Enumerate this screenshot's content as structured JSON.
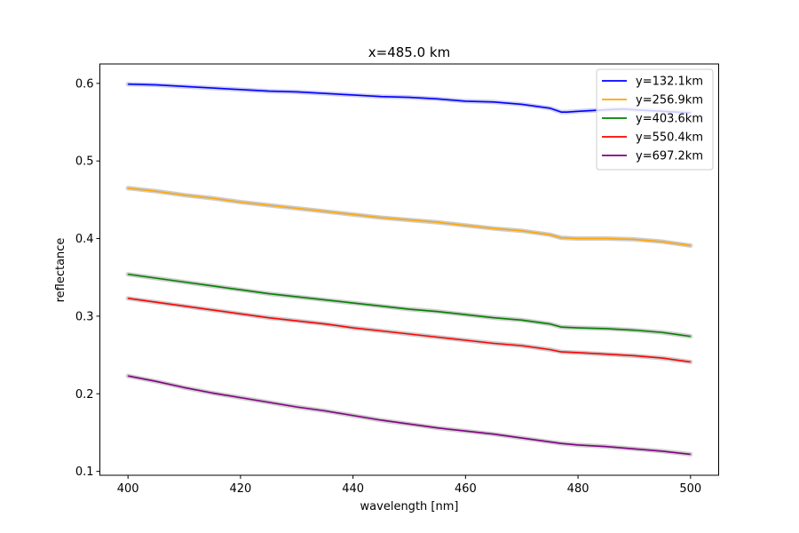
{
  "chart_data": {
    "type": "line",
    "title": "x=485.0 km",
    "xlabel": "wavelength [nm]",
    "ylabel": "reflectance",
    "xlim": [
      395,
      505
    ],
    "ylim": [
      0.095,
      0.625
    ],
    "xticks": [
      400,
      420,
      440,
      460,
      480,
      500
    ],
    "xtick_labels": [
      "400",
      "420",
      "440",
      "460",
      "480",
      "500"
    ],
    "yticks": [
      0.1,
      0.2,
      0.3,
      0.4,
      0.5,
      0.6
    ],
    "ytick_labels": [
      "0.1",
      "0.2",
      "0.3",
      "0.4",
      "0.5",
      "0.6"
    ],
    "grid": false,
    "legend_position": "top-right",
    "series": [
      {
        "name": "y=132.1km",
        "color": "#0000ff",
        "band_color": "#c8c8f0",
        "points": [
          [
            400,
            0.599
          ],
          [
            405,
            0.598
          ],
          [
            410,
            0.596
          ],
          [
            415,
            0.594
          ],
          [
            420,
            0.592
          ],
          [
            425,
            0.59
          ],
          [
            430,
            0.589
          ],
          [
            435,
            0.587
          ],
          [
            440,
            0.585
          ],
          [
            445,
            0.583
          ],
          [
            450,
            0.582
          ],
          [
            455,
            0.58
          ],
          [
            460,
            0.577
          ],
          [
            465,
            0.576
          ],
          [
            470,
            0.573
          ],
          [
            475,
            0.568
          ],
          [
            477,
            0.563
          ],
          [
            478,
            0.563
          ],
          [
            480,
            0.564
          ],
          [
            485,
            0.566
          ],
          [
            488,
            0.567
          ],
          [
            490,
            0.566
          ],
          [
            495,
            0.564
          ],
          [
            500,
            0.562
          ]
        ]
      },
      {
        "name": "y=256.9km",
        "color": "#ffa500",
        "band_color": "#c8c8c8",
        "points": [
          [
            400,
            0.465
          ],
          [
            405,
            0.461
          ],
          [
            410,
            0.456
          ],
          [
            415,
            0.452
          ],
          [
            420,
            0.447
          ],
          [
            425,
            0.443
          ],
          [
            430,
            0.439
          ],
          [
            435,
            0.435
          ],
          [
            440,
            0.431
          ],
          [
            445,
            0.427
          ],
          [
            450,
            0.424
          ],
          [
            455,
            0.421
          ],
          [
            460,
            0.417
          ],
          [
            465,
            0.413
          ],
          [
            470,
            0.41
          ],
          [
            475,
            0.405
          ],
          [
            477,
            0.401
          ],
          [
            480,
            0.4
          ],
          [
            485,
            0.4
          ],
          [
            490,
            0.399
          ],
          [
            495,
            0.396
          ],
          [
            500,
            0.391
          ]
        ]
      },
      {
        "name": "y=403.6km",
        "color": "#008000",
        "band_color": "#c8c8c8",
        "points": [
          [
            400,
            0.354
          ],
          [
            405,
            0.349
          ],
          [
            410,
            0.344
          ],
          [
            415,
            0.339
          ],
          [
            420,
            0.334
          ],
          [
            425,
            0.329
          ],
          [
            430,
            0.325
          ],
          [
            435,
            0.321
          ],
          [
            440,
            0.317
          ],
          [
            445,
            0.313
          ],
          [
            450,
            0.309
          ],
          [
            455,
            0.306
          ],
          [
            460,
            0.302
          ],
          [
            465,
            0.298
          ],
          [
            470,
            0.295
          ],
          [
            475,
            0.29
          ],
          [
            477,
            0.286
          ],
          [
            480,
            0.285
          ],
          [
            485,
            0.284
          ],
          [
            490,
            0.282
          ],
          [
            495,
            0.279
          ],
          [
            500,
            0.274
          ]
        ]
      },
      {
        "name": "y=550.4km",
        "color": "#ff0000",
        "band_color": "#c8c8c8",
        "points": [
          [
            400,
            0.323
          ],
          [
            405,
            0.318
          ],
          [
            410,
            0.313
          ],
          [
            415,
            0.308
          ],
          [
            420,
            0.303
          ],
          [
            425,
            0.298
          ],
          [
            430,
            0.294
          ],
          [
            435,
            0.29
          ],
          [
            440,
            0.285
          ],
          [
            445,
            0.281
          ],
          [
            450,
            0.277
          ],
          [
            455,
            0.273
          ],
          [
            460,
            0.269
          ],
          [
            465,
            0.265
          ],
          [
            470,
            0.262
          ],
          [
            475,
            0.257
          ],
          [
            477,
            0.254
          ],
          [
            480,
            0.253
          ],
          [
            485,
            0.251
          ],
          [
            490,
            0.249
          ],
          [
            495,
            0.246
          ],
          [
            500,
            0.241
          ]
        ]
      },
      {
        "name": "y=697.2km",
        "color": "#800080",
        "band_color": "#c8c8c8",
        "points": [
          [
            400,
            0.223
          ],
          [
            405,
            0.216
          ],
          [
            410,
            0.208
          ],
          [
            415,
            0.201
          ],
          [
            420,
            0.195
          ],
          [
            425,
            0.189
          ],
          [
            430,
            0.183
          ],
          [
            435,
            0.178
          ],
          [
            440,
            0.172
          ],
          [
            445,
            0.166
          ],
          [
            450,
            0.161
          ],
          [
            455,
            0.156
          ],
          [
            460,
            0.152
          ],
          [
            465,
            0.148
          ],
          [
            470,
            0.143
          ],
          [
            475,
            0.138
          ],
          [
            477,
            0.136
          ],
          [
            480,
            0.134
          ],
          [
            485,
            0.132
          ],
          [
            490,
            0.129
          ],
          [
            495,
            0.126
          ],
          [
            500,
            0.122
          ]
        ]
      }
    ]
  }
}
